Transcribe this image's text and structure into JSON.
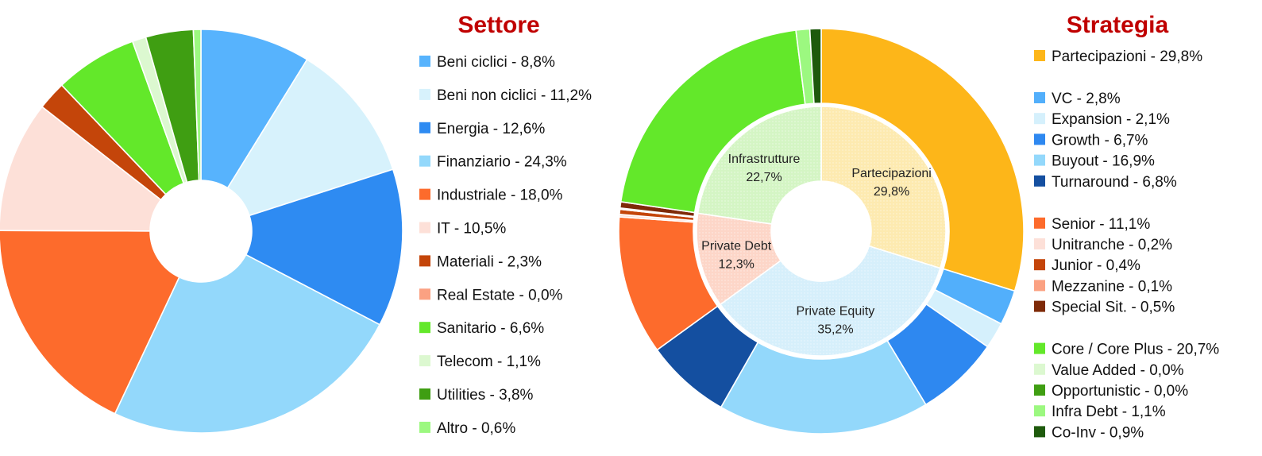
{
  "chart_data": [
    {
      "type": "pie",
      "title": "Settore",
      "variant": "donut",
      "slices": [
        {
          "label": "Beni ciclici - 8,8%",
          "value": 8.8,
          "color": "#57b3fd"
        },
        {
          "label": "Beni non ciclici - 11,2%",
          "value": 11.2,
          "color": "#d7f2fc"
        },
        {
          "label": "Energia - 12,6%",
          "value": 12.6,
          "color": "#2e8bf2"
        },
        {
          "label": "Finanziario - 24,3%",
          "value": 24.3,
          "color": "#93d8fb"
        },
        {
          "label": "Industriale - 18,0%",
          "value": 18.0,
          "color": "#fd6b2c"
        },
        {
          "label": "IT - 10,5%",
          "value": 10.5,
          "color": "#fde0d8"
        },
        {
          "label": "Materiali - 2,3%",
          "value": 2.3,
          "color": "#c4450a"
        },
        {
          "label": "Real Estate - 0,0%",
          "value": 0.0,
          "color": "#fba182"
        },
        {
          "label": "Sanitario - 6,6%",
          "value": 6.6,
          "color": "#63e82a"
        },
        {
          "label": "Telecom - 1,1%",
          "value": 1.1,
          "color": "#dcf8d0"
        },
        {
          "label": "Utilities - 3,8%",
          "value": 3.8,
          "color": "#3f9e12"
        },
        {
          "label": "Altro - 0,6%",
          "value": 0.6,
          "color": "#9cf880"
        }
      ]
    },
    {
      "type": "pie",
      "title": "Strategia",
      "variant": "nested-donut",
      "outer": [
        {
          "label": "Partecipazioni - 29,8%",
          "value": 29.8,
          "color": "#fdb619"
        },
        {
          "label": "VC - 2,8%",
          "value": 2.8,
          "color": "#52affb"
        },
        {
          "label": "Expansion - 2,1%",
          "value": 2.1,
          "color": "#d5f0fc"
        },
        {
          "label": "Growth - 6,7%",
          "value": 6.7,
          "color": "#2e88f0"
        },
        {
          "label": "Buyout - 16,9%",
          "value": 16.9,
          "color": "#93d8fb"
        },
        {
          "label": "Turnaround - 6,8%",
          "value": 6.8,
          "color": "#144fa0"
        },
        {
          "label": "Senior - 11,1%",
          "value": 11.1,
          "color": "#fd6b2c"
        },
        {
          "label": "Unitranche - 0,2%",
          "value": 0.2,
          "color": "#fde0d8"
        },
        {
          "label": "Junior - 0,4%",
          "value": 0.4,
          "color": "#c4450a"
        },
        {
          "label": "Mezzanine - 0,1%",
          "value": 0.1,
          "color": "#fba182"
        },
        {
          "label": "Special Sit. - 0,5%",
          "value": 0.5,
          "color": "#7e2a08"
        },
        {
          "label": "Core / Core Plus - 20,7%",
          "value": 20.7,
          "color": "#63e82a"
        },
        {
          "label": "Value Added - 0,0%",
          "value": 0.0,
          "color": "#dcf8d0"
        },
        {
          "label": "Opportunistic - 0,0%",
          "value": 0.0,
          "color": "#3f9e12"
        },
        {
          "label": "Infra Debt - 1,1%",
          "value": 1.1,
          "color": "#9cf880"
        },
        {
          "label": "Co-Inv - 0,9%",
          "value": 0.9,
          "color": "#1e5a0c"
        }
      ],
      "inner": [
        {
          "name": "Partecipazioni",
          "pct": "29,8%",
          "value": 29.8,
          "color": "#fdeab0"
        },
        {
          "name": "Private Equity",
          "pct": "35,2%",
          "value": 35.2,
          "color": "#d6effb"
        },
        {
          "name": "Private Debt",
          "pct": "12,3%",
          "value": 12.3,
          "color": "#fdd6c8"
        },
        {
          "name": "Infrastrutture",
          "pct": "22,7%",
          "value": 22.7,
          "color": "#d4f5c4"
        }
      ],
      "legend_groups": [
        [
          "Partecipazioni - 29,8%"
        ],
        [
          "VC - 2,8%",
          "Expansion - 2,1%",
          "Growth - 6,7%",
          "Buyout - 16,9%",
          "Turnaround - 6,8%"
        ],
        [
          "Senior - 11,1%",
          "Unitranche - 0,2%",
          "Junior - 0,4%",
          "Mezzanine - 0,1%",
          "Special Sit. - 0,5%"
        ],
        [
          "Core / Core Plus - 20,7%",
          "Value Added - 0,0%",
          "Opportunistic - 0,0%",
          "Infra Debt - 1,1%",
          "Co-Inv - 0,9%"
        ]
      ]
    }
  ]
}
